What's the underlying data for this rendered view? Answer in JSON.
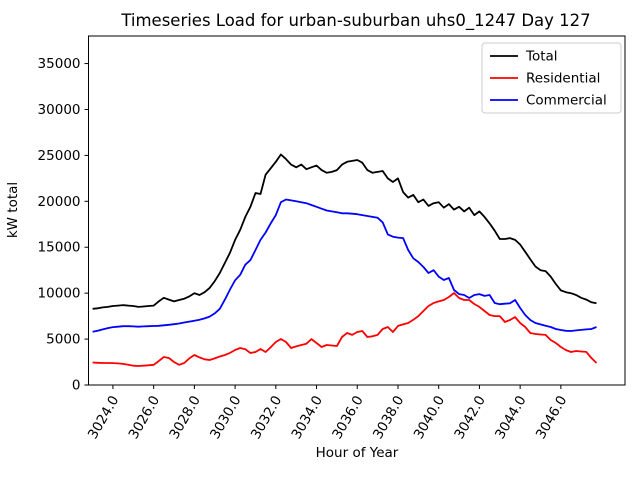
{
  "chart_data": {
    "type": "line",
    "title": "Timeseries Load for urban-suburban uhs0_1247  Day 127",
    "xlabel": "Hour of Year",
    "ylabel": "kW total",
    "grid": false,
    "legend_position": "upper right",
    "xlim": [
      3022.8,
      3049.15
    ],
    "ylim": [
      0,
      38000
    ],
    "xticks": {
      "values": [
        3024,
        3026,
        3028,
        3030,
        3032,
        3034,
        3036,
        3038,
        3040,
        3042,
        3044,
        3046
      ],
      "labels": [
        "3024.0",
        "3026.0",
        "3028.0",
        "3030.0",
        "3032.0",
        "3034.0",
        "3036.0",
        "3038.0",
        "3040.0",
        "3042.0",
        "3044.0",
        "3046.0"
      ]
    },
    "yticks": {
      "values": [
        0,
        5000,
        10000,
        15000,
        20000,
        25000,
        30000,
        35000
      ],
      "labels": [
        "0",
        "5000",
        "10000",
        "15000",
        "20000",
        "25000",
        "30000",
        "35000"
      ]
    },
    "x": [
      3023.0,
      3023.25,
      3023.5,
      3023.75,
      3024.0,
      3024.25,
      3024.5,
      3024.75,
      3025.0,
      3025.25,
      3025.5,
      3025.75,
      3026.0,
      3026.25,
      3026.5,
      3026.75,
      3027.0,
      3027.25,
      3027.5,
      3027.75,
      3028.0,
      3028.25,
      3028.5,
      3028.75,
      3029.0,
      3029.25,
      3029.5,
      3029.75,
      3030.0,
      3030.25,
      3030.5,
      3030.75,
      3031.0,
      3031.25,
      3031.5,
      3031.75,
      3032.0,
      3032.25,
      3032.5,
      3032.75,
      3033.0,
      3033.25,
      3033.5,
      3033.75,
      3034.0,
      3034.25,
      3034.5,
      3034.75,
      3035.0,
      3035.25,
      3035.5,
      3035.75,
      3036.0,
      3036.25,
      3036.5,
      3036.75,
      3037.0,
      3037.25,
      3037.5,
      3037.75,
      3038.0,
      3038.25,
      3038.5,
      3038.75,
      3039.0,
      3039.25,
      3039.5,
      3039.75,
      3040.0,
      3040.25,
      3040.5,
      3040.75,
      3041.0,
      3041.25,
      3041.5,
      3041.75,
      3042.0,
      3042.25,
      3042.5,
      3042.75,
      3043.0,
      3043.25,
      3043.5,
      3043.75,
      3044.0,
      3044.25,
      3044.5,
      3044.75,
      3045.0,
      3045.25,
      3045.5,
      3045.75,
      3046.0,
      3046.25,
      3046.5,
      3046.75,
      3047.0,
      3047.25,
      3047.5,
      3047.75
    ],
    "series": [
      {
        "name": "Total",
        "color": "#000000",
        "values": [
          8300,
          8350,
          8450,
          8500,
          8600,
          8650,
          8700,
          8650,
          8600,
          8500,
          8550,
          8600,
          8650,
          9100,
          9500,
          9300,
          9100,
          9250,
          9400,
          9650,
          10000,
          9800,
          10100,
          10560,
          11300,
          12200,
          13300,
          14400,
          15800,
          16900,
          18300,
          19400,
          20900,
          20800,
          22900,
          23600,
          24300,
          25100,
          24600,
          24000,
          23700,
          24000,
          23500,
          23700,
          23900,
          23400,
          23100,
          23200,
          23400,
          24000,
          24300,
          24400,
          24500,
          24200,
          23400,
          23100,
          23200,
          23300,
          22500,
          22100,
          22500,
          21000,
          20400,
          20700,
          19900,
          20200,
          19500,
          19800,
          19900,
          19300,
          19700,
          19100,
          19400,
          18900,
          19300,
          18500,
          18900,
          18300,
          17600,
          16800,
          15900,
          15900,
          16000,
          15800,
          15300,
          14500,
          13700,
          12900,
          12500,
          12400,
          11800,
          11000,
          10300,
          10100,
          10000,
          9800,
          9500,
          9300,
          9000,
          8900
        ]
      },
      {
        "name": "Residential",
        "color": "#ff0000",
        "values": [
          2450,
          2420,
          2400,
          2400,
          2380,
          2350,
          2300,
          2200,
          2100,
          2070,
          2100,
          2150,
          2200,
          2600,
          3050,
          2940,
          2500,
          2200,
          2400,
          2900,
          3270,
          3000,
          2800,
          2720,
          2900,
          3100,
          3270,
          3500,
          3810,
          4030,
          3900,
          3480,
          3590,
          3920,
          3590,
          4100,
          4680,
          5010,
          4680,
          4030,
          4200,
          4360,
          4500,
          5000,
          4570,
          4140,
          4360,
          4300,
          4250,
          5230,
          5660,
          5450,
          5770,
          5880,
          5230,
          5300,
          5450,
          6100,
          6320,
          5770,
          6430,
          6600,
          6750,
          7100,
          7500,
          8060,
          8600,
          8930,
          9100,
          9260,
          9580,
          10020,
          9470,
          9260,
          9260,
          8820,
          8500,
          8060,
          7620,
          7500,
          7500,
          6860,
          7080,
          7400,
          6750,
          6320,
          5660,
          5550,
          5500,
          5450,
          4900,
          4570,
          4140,
          3800,
          3590,
          3700,
          3650,
          3600,
          2940,
          2400
        ]
      },
      {
        "name": "Commercial",
        "color": "#0000ff",
        "values": [
          5800,
          5900,
          6050,
          6200,
          6300,
          6350,
          6400,
          6400,
          6380,
          6350,
          6380,
          6400,
          6420,
          6450,
          6500,
          6550,
          6620,
          6700,
          6800,
          6900,
          7000,
          7100,
          7250,
          7450,
          7800,
          8300,
          9300,
          10400,
          11400,
          12000,
          13100,
          13600,
          14700,
          15800,
          16600,
          17600,
          18500,
          19900,
          20200,
          20100,
          20000,
          19900,
          19800,
          19600,
          19400,
          19200,
          19000,
          18900,
          18800,
          18700,
          18700,
          18650,
          18600,
          18500,
          18400,
          18300,
          18200,
          17700,
          16400,
          16150,
          16050,
          16000,
          14700,
          13800,
          13390,
          12850,
          12200,
          12500,
          11800,
          11430,
          11650,
          10340,
          9900,
          9800,
          9470,
          9800,
          9900,
          9700,
          9800,
          8930,
          8800,
          8850,
          8900,
          9260,
          8400,
          7620,
          7080,
          6750,
          6600,
          6450,
          6320,
          6100,
          5990,
          5900,
          5880,
          5950,
          6000,
          6050,
          6100,
          6320
        ]
      }
    ]
  }
}
